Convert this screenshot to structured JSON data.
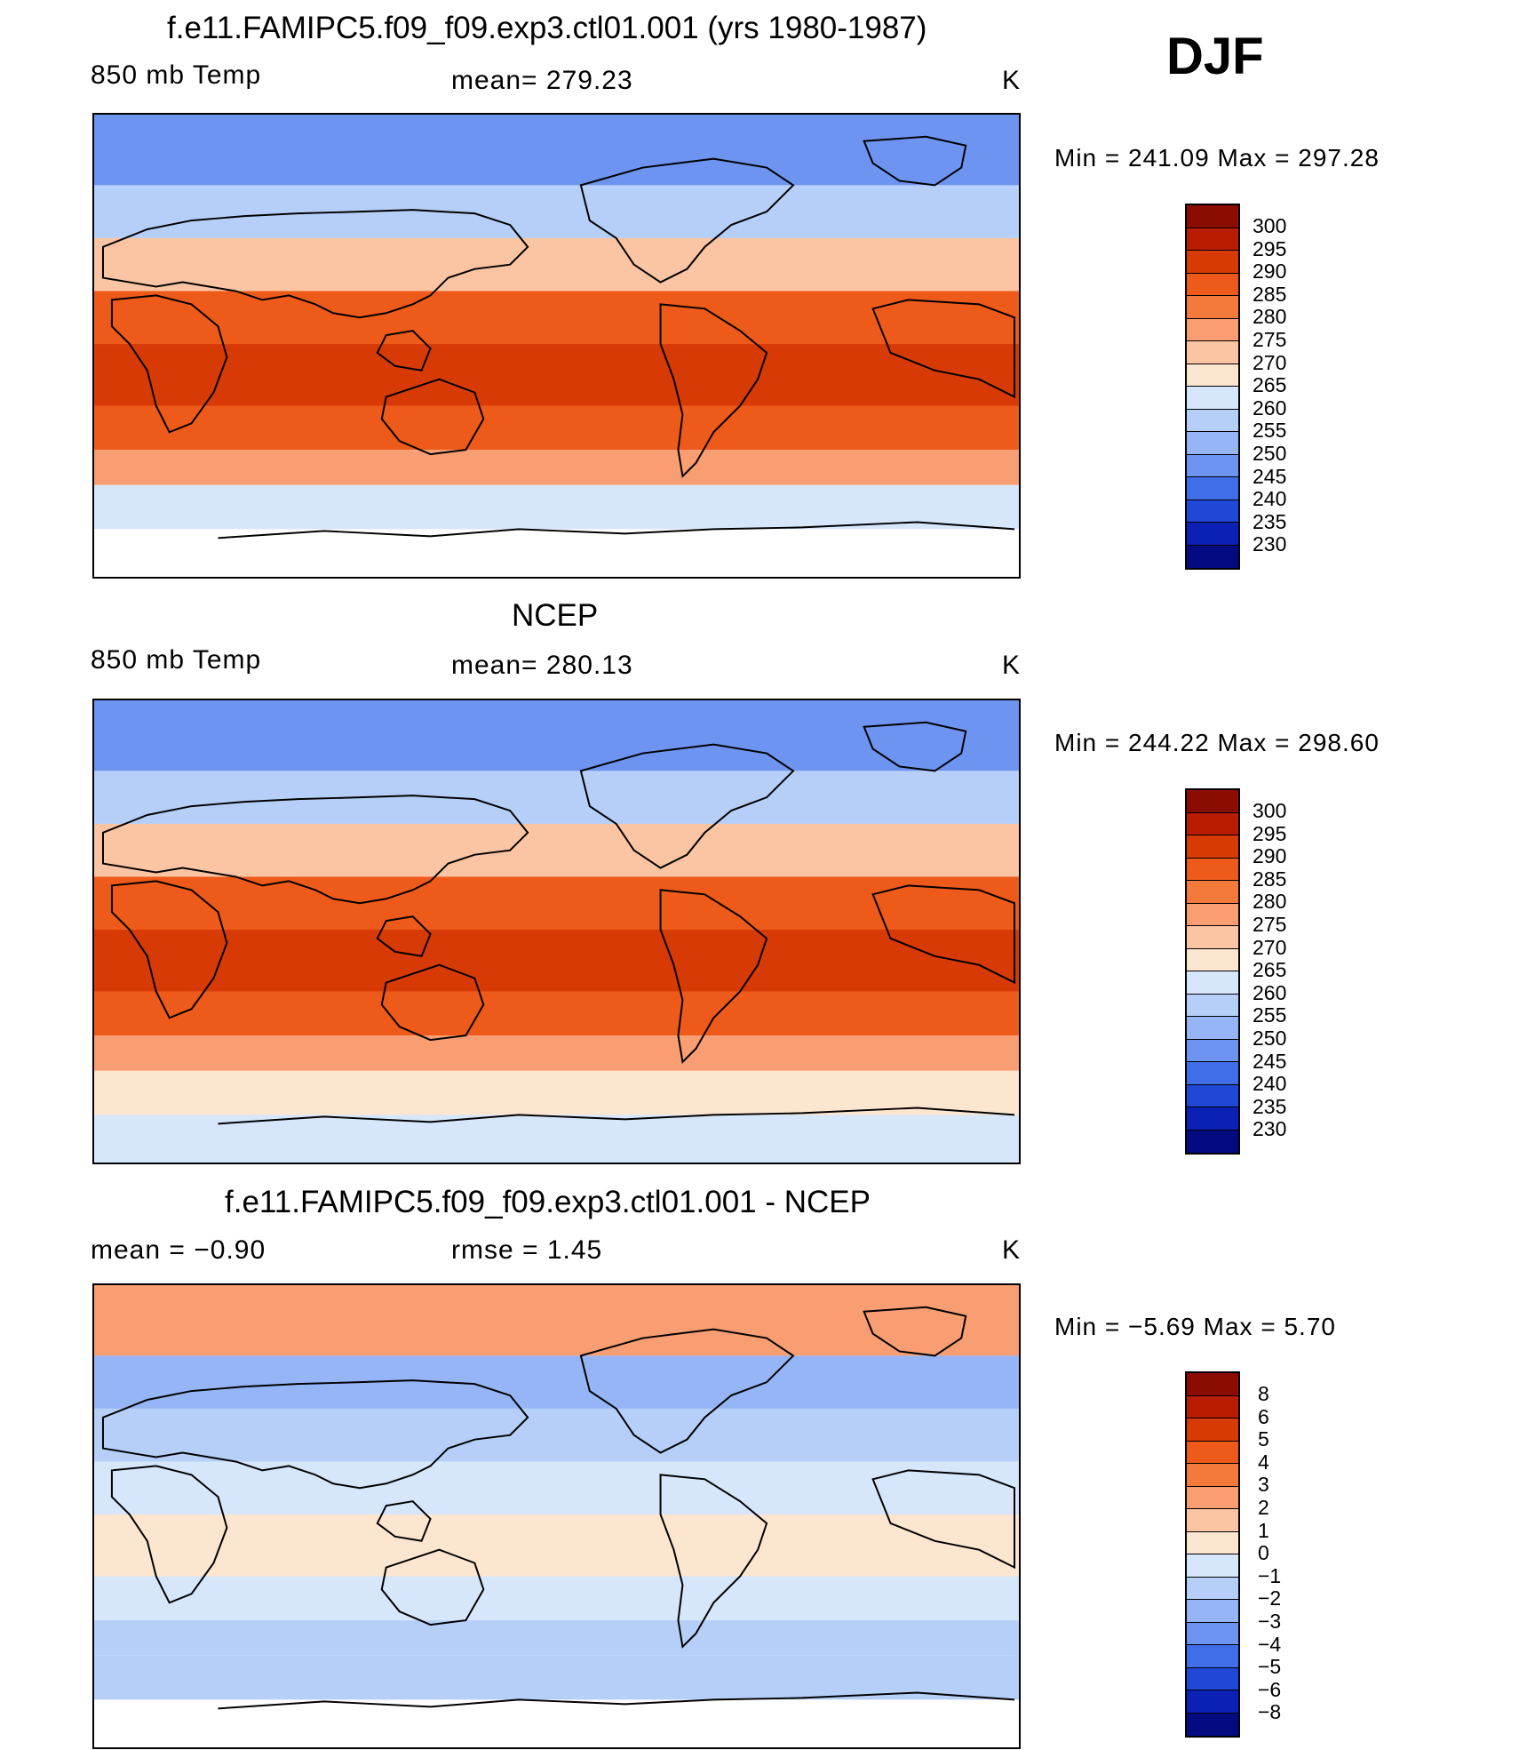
{
  "figure": {
    "season": "DJF"
  },
  "panels": [
    {
      "id": "model",
      "title": "f.e11.FAMIPC5.f09_f09.exp3.ctl01.001 (yrs 1980-1987)",
      "left_label": "850 mb Temp",
      "center_label": "mean= 279.23",
      "units": "K",
      "minmax": "Min = 241.09 Max = 297.28",
      "colorbar": {
        "labels": [
          "300",
          "295",
          "290",
          "285",
          "280",
          "275",
          "270",
          "265",
          "260",
          "255",
          "250",
          "245",
          "240",
          "235",
          "230"
        ],
        "colors": [
          "#8b0d00",
          "#b91c00",
          "#d83a06",
          "#ee5a1a",
          "#f47a3c",
          "#f89e72",
          "#fbc4a2",
          "#fde6d0",
          "#d6e6fb",
          "#b6cff9",
          "#95b5f6",
          "#6c94f0",
          "#3f6ee8",
          "#1f47d8",
          "#0b21b6",
          "#020c80"
        ]
      },
      "fill_levels": {
        "arctic": "#6c94f0",
        "nmid": "#b6cff9",
        "sub": "#fbc4a2",
        "trop": "#ee5a1a",
        "hot": "#d83a06",
        "smid": "#f89e72",
        "south": "#d6e6fb",
        "ant": "#ffffff"
      }
    },
    {
      "id": "ncep",
      "title": "NCEP",
      "left_label": "850 mb Temp",
      "center_label": "mean= 280.13",
      "units": "K",
      "minmax": "Min = 244.22 Max = 298.60",
      "colorbar": {
        "labels": [
          "300",
          "295",
          "290",
          "285",
          "280",
          "275",
          "270",
          "265",
          "260",
          "255",
          "250",
          "245",
          "240",
          "235",
          "230"
        ],
        "colors": [
          "#8b0d00",
          "#b91c00",
          "#d83a06",
          "#ee5a1a",
          "#f47a3c",
          "#f89e72",
          "#fbc4a2",
          "#fde6d0",
          "#d6e6fb",
          "#b6cff9",
          "#95b5f6",
          "#6c94f0",
          "#3f6ee8",
          "#1f47d8",
          "#0b21b6",
          "#020c80"
        ]
      },
      "fill_levels": {
        "arctic": "#6c94f0",
        "nmid": "#b6cff9",
        "sub": "#fbc4a2",
        "trop": "#ee5a1a",
        "hot": "#d83a06",
        "smid": "#f89e72",
        "south": "#fde6d0",
        "ant": "#d6e6fb"
      }
    },
    {
      "id": "diff",
      "title": "f.e11.FAMIPC5.f09_f09.exp3.ctl01.001 - NCEP",
      "left_label": "mean =   −0.90",
      "center_label": "rmse =    1.45",
      "units": "K",
      "minmax": "Min =   −5.69 Max =    5.70",
      "colorbar": {
        "labels": [
          "8",
          "6",
          "5",
          "4",
          "3",
          "2",
          "1",
          "0",
          "−1",
          "−2",
          "−3",
          "−4",
          "−5",
          "−6",
          "−8"
        ],
        "colors": [
          "#8b0d00",
          "#b91c00",
          "#d83a06",
          "#ee5a1a",
          "#f47a3c",
          "#f89e72",
          "#fbc4a2",
          "#fde6d0",
          "#d6e6fb",
          "#b6cff9",
          "#95b5f6",
          "#6c94f0",
          "#3f6ee8",
          "#1f47d8",
          "#0b21b6",
          "#020c80"
        ]
      },
      "fill_levels": {
        "arctic": "#f89e72",
        "nmid": "#95b5f6",
        "sub": "#b6cff9",
        "trop": "#d6e6fb",
        "hot": "#fde6d0",
        "smid": "#b6cff9",
        "south": "#b6cff9",
        "ant": "#ffffff"
      }
    }
  ],
  "chart_data": [
    {
      "type": "heatmap",
      "title": "f.e11.FAMIPC5.f09_f09.exp3.ctl01.001 (yrs 1980-1987)",
      "variable": "850 mb Temp",
      "mean": 279.23,
      "min": 241.09,
      "max": 297.28,
      "units": "K",
      "season": "DJF",
      "contour_levels": [
        230,
        235,
        240,
        245,
        250,
        255,
        260,
        265,
        270,
        275,
        280,
        285,
        290,
        295,
        300
      ]
    },
    {
      "type": "heatmap",
      "title": "NCEP",
      "variable": "850 mb Temp",
      "mean": 280.13,
      "min": 244.22,
      "max": 298.6,
      "units": "K",
      "season": "DJF",
      "contour_levels": [
        230,
        235,
        240,
        245,
        250,
        255,
        260,
        265,
        270,
        275,
        280,
        285,
        290,
        295,
        300
      ]
    },
    {
      "type": "heatmap",
      "title": "f.e11.FAMIPC5.f09_f09.exp3.ctl01.001 - NCEP",
      "mean": -0.9,
      "rmse": 1.45,
      "min": -5.69,
      "max": 5.7,
      "units": "K",
      "season": "DJF",
      "contour_levels": [
        -8,
        -6,
        -5,
        -4,
        -3,
        -2,
        -1,
        0,
        1,
        2,
        3,
        4,
        5,
        6,
        8
      ]
    }
  ]
}
